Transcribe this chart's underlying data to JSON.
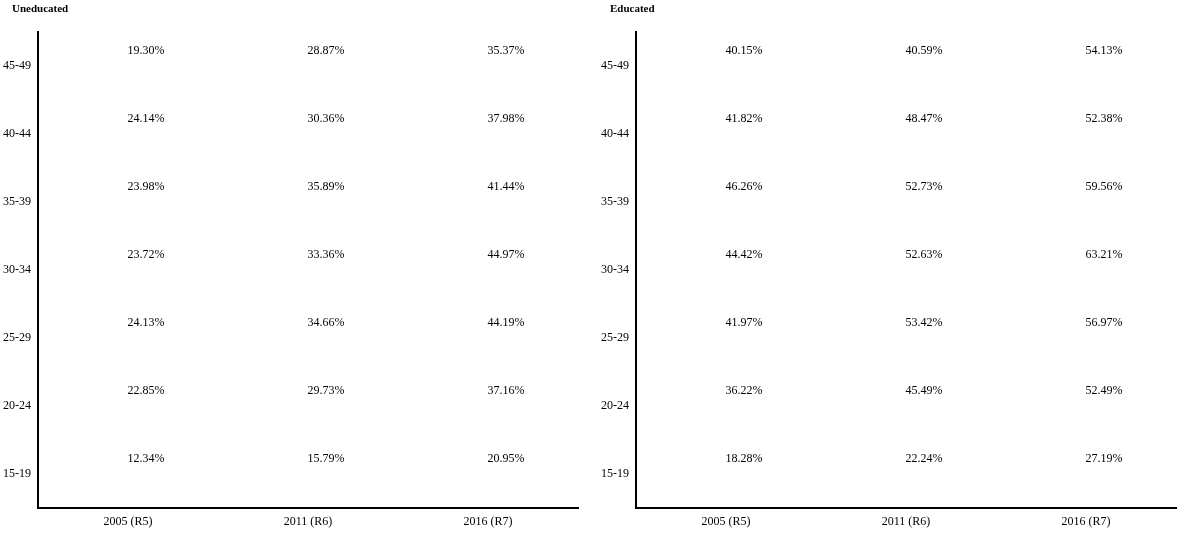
{
  "chart_data": [
    {
      "type": "heatmap",
      "title": "Uneducated",
      "categories": [
        "2005 (R5)",
        "2011 (R6)",
        "2016 (R7)"
      ],
      "y_categories": [
        "45-49",
        "40-44",
        "35-39",
        "30-34",
        "25-29",
        "20-24",
        "15-19"
      ],
      "cells": [
        [
          19.3,
          28.87,
          35.37
        ],
        [
          24.14,
          30.36,
          37.98
        ],
        [
          23.98,
          35.89,
          41.44
        ],
        [
          23.72,
          33.36,
          44.97
        ],
        [
          24.13,
          34.66,
          44.19
        ],
        [
          22.85,
          29.73,
          37.16
        ],
        [
          12.34,
          15.79,
          20.95
        ]
      ],
      "cell_labels": [
        [
          "19.30%",
          "28.87%",
          "35.37%"
        ],
        [
          "24.14%",
          "30.36%",
          "37.98%"
        ],
        [
          "23.98%",
          "35.89%",
          "41.44%"
        ],
        [
          "23.72%",
          "33.36%",
          "44.97%"
        ],
        [
          "24.13%",
          "34.66%",
          "44.19%"
        ],
        [
          "22.85%",
          "29.73%",
          "37.16%"
        ],
        [
          "12.34%",
          "15.79%",
          "20.95%"
        ]
      ]
    },
    {
      "type": "heatmap",
      "title": "Educated",
      "categories": [
        "2005 (R5)",
        "2011 (R6)",
        "2016 (R7)"
      ],
      "y_categories": [
        "45-49",
        "40-44",
        "35-39",
        "30-34",
        "25-29",
        "20-24",
        "15-19"
      ],
      "cells": [
        [
          40.15,
          40.59,
          54.13
        ],
        [
          41.82,
          48.47,
          52.38
        ],
        [
          46.26,
          52.73,
          59.56
        ],
        [
          44.42,
          52.63,
          63.21
        ],
        [
          41.97,
          53.42,
          56.97
        ],
        [
          36.22,
          45.49,
          52.49
        ],
        [
          18.28,
          22.24,
          27.19
        ]
      ],
      "cell_labels": [
        [
          "40.15%",
          "40.59%",
          "54.13%"
        ],
        [
          "41.82%",
          "48.47%",
          "52.38%"
        ],
        [
          "46.26%",
          "52.73%",
          "59.56%"
        ],
        [
          "44.42%",
          "52.63%",
          "63.21%"
        ],
        [
          "41.97%",
          "53.42%",
          "56.97%"
        ],
        [
          "36.22%",
          "45.49%",
          "52.49%"
        ],
        [
          "18.28%",
          "22.24%",
          "27.19%"
        ]
      ]
    }
  ]
}
